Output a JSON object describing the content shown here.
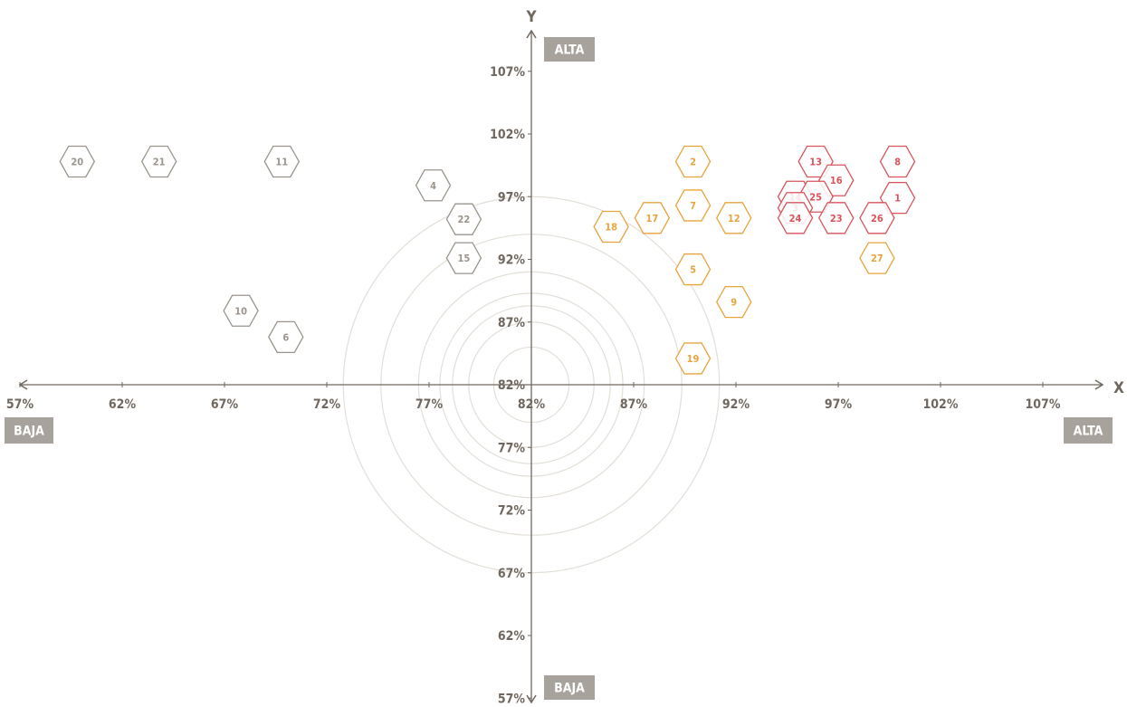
{
  "chart_data": {
    "type": "scatter",
    "xlabel": "X",
    "ylabel": "Y",
    "x_low_label": "BAJA",
    "x_high_label": "ALTA",
    "y_low_label": "BAJA",
    "y_high_label": "ALTA",
    "xlim": [
      57,
      109
    ],
    "ylim": [
      57,
      109
    ],
    "origin": [
      82,
      82
    ],
    "x_ticks": [
      "57%",
      "62%",
      "67%",
      "72%",
      "77%",
      "82%",
      "87%",
      "92%",
      "97%",
      "102%",
      "107%"
    ],
    "y_ticks": [
      "107%",
      "102%",
      "97%",
      "92%",
      "87%",
      "82%",
      "77%",
      "72%",
      "67%",
      "62%",
      "57%"
    ],
    "x_tick_values": [
      57,
      62,
      67,
      72,
      77,
      82,
      87,
      92,
      97,
      102,
      107
    ],
    "y_tick_values": [
      107,
      102,
      97,
      92,
      87,
      82,
      77,
      72,
      67,
      62,
      57
    ],
    "circle_radii": [
      3,
      5,
      6.3,
      7.3,
      9,
      12,
      15
    ],
    "grid": false,
    "series": [
      {
        "color": "#9a948c",
        "points": [
          {
            "label": "20",
            "x": 59.8,
            "y": 99.8
          },
          {
            "label": "21",
            "x": 63.8,
            "y": 99.8
          },
          {
            "label": "11",
            "x": 69.8,
            "y": 99.8
          },
          {
            "label": "4",
            "x": 77.2,
            "y": 97.9
          },
          {
            "label": "22",
            "x": 78.7,
            "y": 95.2
          },
          {
            "label": "15",
            "x": 78.7,
            "y": 92.1
          },
          {
            "label": "10",
            "x": 67.8,
            "y": 87.9
          },
          {
            "label": "6",
            "x": 70.0,
            "y": 85.8
          }
        ]
      },
      {
        "color": "#e8a33c",
        "points": [
          {
            "label": "2",
            "x": 89.9,
            "y": 99.8
          },
          {
            "label": "7",
            "x": 89.9,
            "y": 96.3
          },
          {
            "label": "12",
            "x": 91.9,
            "y": 95.3
          },
          {
            "label": "17",
            "x": 87.9,
            "y": 95.3
          },
          {
            "label": "18",
            "x": 85.9,
            "y": 94.6
          },
          {
            "label": "5",
            "x": 89.9,
            "y": 91.2
          },
          {
            "label": "9",
            "x": 91.9,
            "y": 88.6
          },
          {
            "label": "19",
            "x": 89.9,
            "y": 84.1
          },
          {
            "label": "27",
            "x": 98.9,
            "y": 92.1
          }
        ]
      },
      {
        "color": "#d9535b",
        "points": [
          {
            "label": "13",
            "x": 95.9,
            "y": 99.8
          },
          {
            "label": "8",
            "x": 99.9,
            "y": 99.8
          },
          {
            "label": "16",
            "x": 96.9,
            "y": 98.3
          },
          {
            "label": "14",
            "x": 94.9,
            "y": 97.0
          },
          {
            "label": "25",
            "x": 95.9,
            "y": 97.0
          },
          {
            "label": "1",
            "x": 99.9,
            "y": 96.9
          },
          {
            "label": "3",
            "x": 94.9,
            "y": 96.1
          },
          {
            "label": "24",
            "x": 94.9,
            "y": 95.3
          },
          {
            "label": "23",
            "x": 96.9,
            "y": 95.3
          },
          {
            "label": "26",
            "x": 98.9,
            "y": 95.3
          }
        ]
      }
    ]
  },
  "colors": {
    "axis": "#6f675e",
    "circle": "#e3dfd8",
    "badge_bg": "#a7a29b"
  }
}
